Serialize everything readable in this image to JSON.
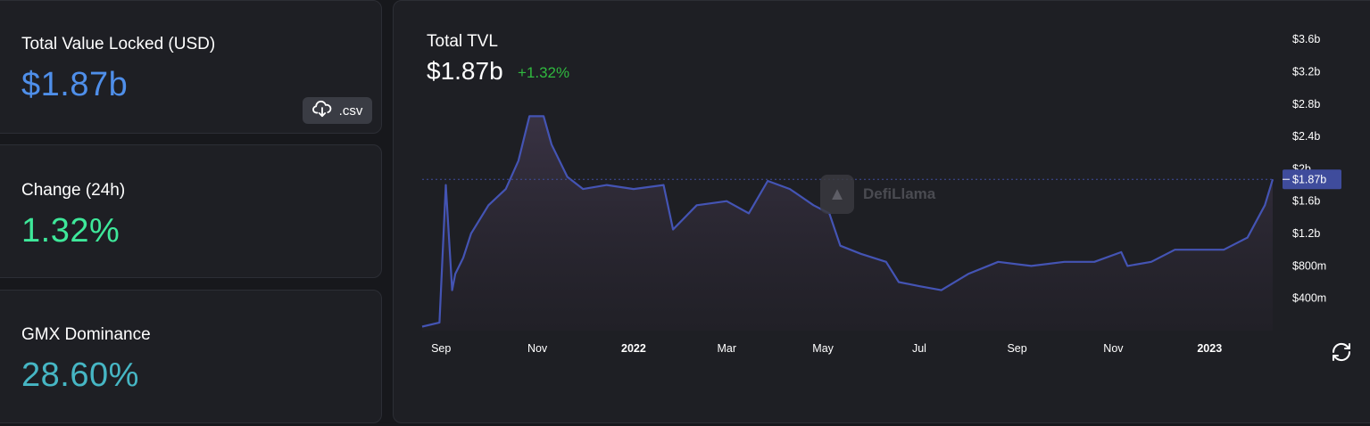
{
  "stats": {
    "tvl": {
      "label": "Total Value Locked (USD)",
      "value": "$1.87b"
    },
    "change": {
      "label": "Change (24h)",
      "value": "1.32%"
    },
    "dominance": {
      "label": "GMX Dominance",
      "value": "28.60%"
    },
    "csv_button": ".csv"
  },
  "chart": {
    "title": "Total TVL",
    "current_value": "$1.87b",
    "change": "+1.32%",
    "watermark": "DefiLlama",
    "current_marker_label": "$1.87b",
    "colors": {
      "line": "#4454b4",
      "positive": "#30b93f",
      "marker_bg": "#3f4c9c"
    }
  },
  "chart_data": {
    "type": "area",
    "title": "Total TVL",
    "xlabel": "",
    "ylabel": "",
    "x_ticks": [
      "Sep",
      "Nov",
      "2022",
      "Mar",
      "May",
      "Jul",
      "Sep",
      "Nov",
      "2023"
    ],
    "y_ticks": [
      "$400m",
      "$800m",
      "$1.2b",
      "$1.6b",
      "$2b",
      "$2.4b",
      "$2.8b",
      "$3.2b",
      "$3.6b"
    ],
    "ylim": [
      0,
      3.8
    ],
    "units": "USD billions",
    "x": [
      "2021-08-20",
      "2021-08-31",
      "2021-09-04",
      "2021-09-08",
      "2021-09-10",
      "2021-09-15",
      "2021-09-20",
      "2021-10-01",
      "2021-10-12",
      "2021-10-20",
      "2021-10-27",
      "2021-11-05",
      "2021-11-10",
      "2021-11-20",
      "2021-11-30",
      "2021-12-15",
      "2022-01-01",
      "2022-01-20",
      "2022-01-26",
      "2022-02-10",
      "2022-03-01",
      "2022-03-15",
      "2022-03-27",
      "2022-04-10",
      "2022-04-25",
      "2022-05-05",
      "2022-05-12",
      "2022-05-25",
      "2022-06-10",
      "2022-06-18",
      "2022-07-01",
      "2022-07-15",
      "2022-08-01",
      "2022-08-20",
      "2022-09-10",
      "2022-10-01",
      "2022-10-20",
      "2022-11-06",
      "2022-11-10",
      "2022-11-25",
      "2022-12-10",
      "2022-12-25",
      "2023-01-10",
      "2023-01-25",
      "2023-02-05",
      "2023-02-10"
    ],
    "y": [
      0.05,
      0.1,
      1.8,
      0.5,
      0.7,
      0.9,
      1.2,
      1.55,
      1.75,
      2.1,
      2.65,
      2.65,
      2.3,
      1.9,
      1.75,
      1.8,
      1.75,
      1.8,
      1.25,
      1.55,
      1.6,
      1.45,
      1.85,
      1.75,
      1.55,
      1.45,
      1.05,
      0.95,
      0.85,
      0.6,
      0.55,
      0.5,
      0.7,
      0.85,
      0.8,
      0.85,
      0.85,
      0.97,
      0.8,
      0.85,
      1.0,
      1.0,
      1.0,
      1.15,
      1.55,
      1.87
    ],
    "current": 1.87,
    "grid": false,
    "legend": "none"
  }
}
